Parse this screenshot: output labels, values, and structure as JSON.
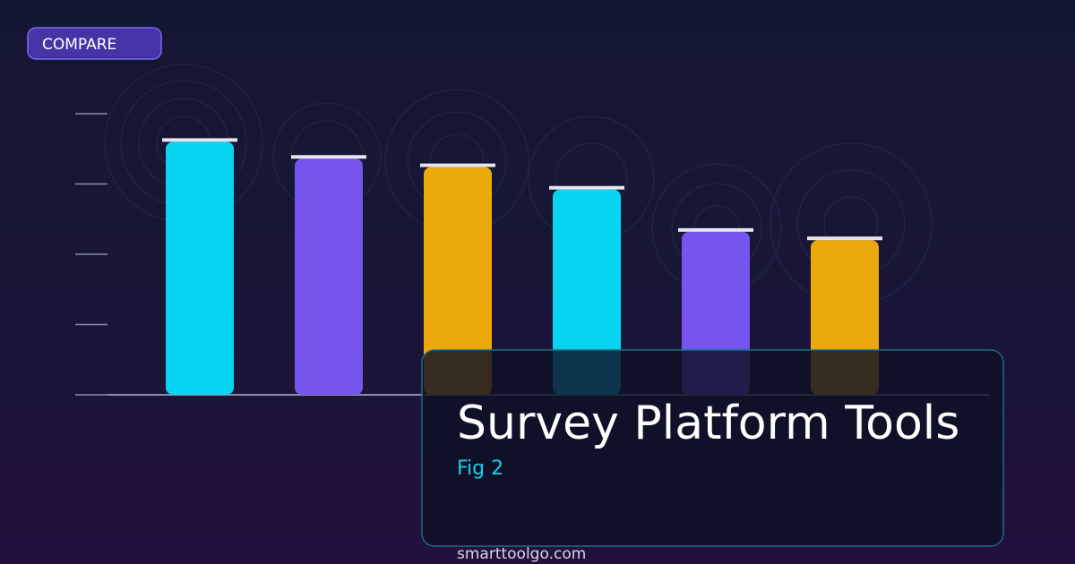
{
  "badge": "COMPARE",
  "footer": "smarttoolgo.com",
  "chart_data": {
    "type": "bar",
    "title": "Survey Platform Tools",
    "subtitle": "Fig 2",
    "categories": [
      null,
      null,
      null,
      null,
      null,
      null
    ],
    "values": [
      90,
      84,
      81,
      73,
      58,
      55
    ],
    "colors": [
      "#06d4f0",
      "#7655ee",
      "#eba90a",
      "#06d4f0",
      "#7655ee",
      "#eba90a"
    ],
    "ylim": [
      0,
      100
    ],
    "yticks": [
      0,
      25,
      50,
      75,
      100
    ]
  }
}
